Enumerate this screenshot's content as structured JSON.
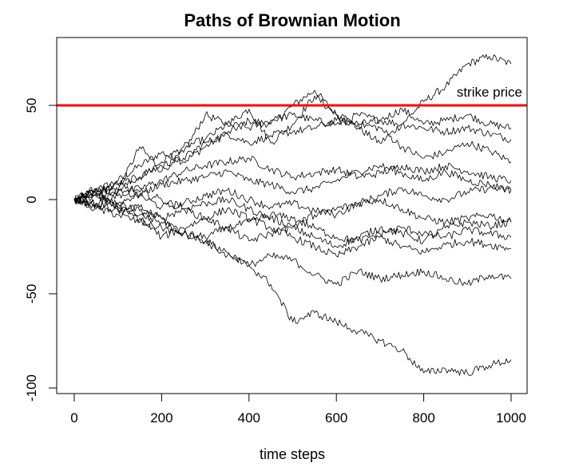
{
  "chart_data": {
    "type": "line",
    "title": "Paths of Brownian Motion",
    "xlabel": "time steps",
    "ylabel": "",
    "xlim": [
      0,
      1000
    ],
    "ylim": [
      -100,
      75
    ],
    "x_ticks": [
      0,
      200,
      400,
      600,
      800,
      1000
    ],
    "y_ticks": [
      -100,
      -50,
      0,
      50
    ],
    "x_tick_labels": [
      "0",
      "200",
      "400",
      "600",
      "800",
      "1000"
    ],
    "y_tick_labels": [
      "-100",
      "-50",
      "0",
      "50"
    ],
    "grid": false,
    "line_color": "#000000",
    "reference_line": {
      "y": 50,
      "color": "#ff0000",
      "label": "strike price"
    },
    "x": [
      0,
      50,
      100,
      150,
      200,
      250,
      300,
      350,
      400,
      450,
      500,
      550,
      600,
      650,
      700,
      750,
      800,
      850,
      900,
      950,
      1000
    ],
    "series": [
      {
        "values": [
          0,
          5,
          10,
          18,
          25,
          20,
          28,
          35,
          42,
          40,
          50,
          58,
          45,
          38,
          30,
          40,
          52,
          60,
          72,
          76,
          72
        ]
      },
      {
        "values": [
          0,
          -2,
          5,
          28,
          15,
          25,
          45,
          40,
          48,
          30,
          40,
          55,
          45,
          40,
          42,
          48,
          40,
          42,
          45,
          40,
          38
        ]
      },
      {
        "values": [
          0,
          3,
          8,
          12,
          20,
          28,
          32,
          40,
          38,
          42,
          45,
          42,
          40,
          45,
          42,
          40,
          38,
          36,
          38,
          35,
          32
        ]
      },
      {
        "values": [
          0,
          2,
          5,
          12,
          18,
          22,
          30,
          35,
          30,
          34,
          36,
          38,
          42,
          40,
          38,
          28,
          22,
          25,
          30,
          26,
          20
        ]
      },
      {
        "values": [
          0,
          -3,
          2,
          6,
          10,
          15,
          18,
          20,
          22,
          16,
          12,
          14,
          16,
          12,
          14,
          18,
          15,
          18,
          15,
          12,
          10
        ]
      },
      {
        "values": [
          0,
          4,
          -2,
          3,
          8,
          10,
          12,
          15,
          10,
          8,
          4,
          6,
          10,
          15,
          18,
          14,
          10,
          15,
          10,
          8,
          5
        ]
      },
      {
        "values": [
          0,
          6,
          4,
          2,
          -4,
          -2,
          2,
          5,
          0,
          -4,
          -2,
          -6,
          -8,
          -2,
          2,
          6,
          2,
          0,
          4,
          6,
          5
        ]
      },
      {
        "values": [
          0,
          -4,
          -2,
          -6,
          -10,
          -5,
          -2,
          0,
          -5,
          -10,
          -14,
          -8,
          -5,
          -2,
          0,
          -5,
          -10,
          -12,
          -10,
          -8,
          -12
        ]
      },
      {
        "values": [
          0,
          5,
          8,
          4,
          0,
          -5,
          -10,
          -15,
          -22,
          -18,
          -15,
          -20,
          -25,
          -20,
          -15,
          -18,
          -22,
          -15,
          -12,
          -14,
          -12
        ]
      },
      {
        "values": [
          0,
          -5,
          -8,
          -12,
          -15,
          -18,
          -20,
          -15,
          -12,
          -8,
          -10,
          -15,
          -20,
          -22,
          -18,
          -15,
          -18,
          -20,
          -16,
          -18,
          -20
        ]
      },
      {
        "values": [
          0,
          3,
          -5,
          -10,
          -20,
          -15,
          -10,
          -5,
          -10,
          -15,
          -20,
          -25,
          -30,
          -25,
          -20,
          -25,
          -28,
          -24,
          -22,
          -24,
          -26
        ]
      },
      {
        "values": [
          0,
          -2,
          -6,
          -4,
          -10,
          -18,
          -22,
          -28,
          -35,
          -30,
          -32,
          -40,
          -45,
          -38,
          -42,
          -40,
          -38,
          -42,
          -45,
          -40,
          -42
        ]
      },
      {
        "values": [
          0,
          2,
          -4,
          -8,
          -12,
          -18,
          -22,
          -30,
          -35,
          -45,
          -65,
          -60,
          -65,
          -70,
          -75,
          -80,
          -92,
          -90,
          -92,
          -88,
          -85
        ]
      }
    ]
  }
}
